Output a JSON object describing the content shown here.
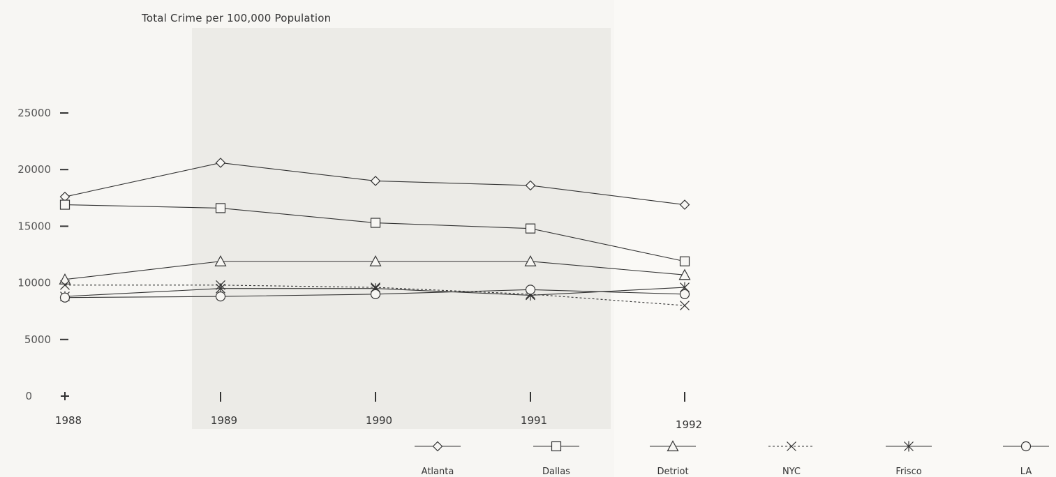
{
  "chart_data": {
    "type": "line",
    "title": "Total Crime per 100,000 Population",
    "xlabel": "",
    "ylabel": "",
    "x": [
      1988,
      1989,
      1990,
      1991,
      1992
    ],
    "x_tick_labels": [
      "1988",
      "1989",
      "1990",
      "1991",
      "1992"
    ],
    "y_ticks": [
      0,
      5000,
      10000,
      15000,
      20000,
      25000
    ],
    "y_tick_labels": [
      "0",
      "5000",
      "10000",
      "15000",
      "20000",
      "25000"
    ],
    "ylim": [
      0,
      25000
    ],
    "grid": false,
    "legend_position": "bottom",
    "series": [
      {
        "name": "Atlanta",
        "marker": "diamond",
        "dash": false,
        "values": [
          17600,
          20600,
          19000,
          18600,
          16900
        ]
      },
      {
        "name": "Dallas",
        "marker": "square",
        "dash": false,
        "values": [
          16900,
          16600,
          15300,
          14800,
          11900
        ]
      },
      {
        "name": "Detriot",
        "marker": "triangle",
        "dash": false,
        "values": [
          10300,
          11900,
          11900,
          11900,
          10700
        ]
      },
      {
        "name": "NYC",
        "marker": "x",
        "dash": true,
        "values": [
          9800,
          9800,
          9600,
          9000,
          8000
        ]
      },
      {
        "name": "Frisco",
        "marker": "asterisk",
        "dash": false,
        "values": [
          8800,
          9500,
          9500,
          8900,
          9600
        ]
      },
      {
        "name": "LA",
        "marker": "circle",
        "dash": false,
        "values": [
          8700,
          8800,
          9000,
          9400,
          9000
        ]
      }
    ]
  }
}
